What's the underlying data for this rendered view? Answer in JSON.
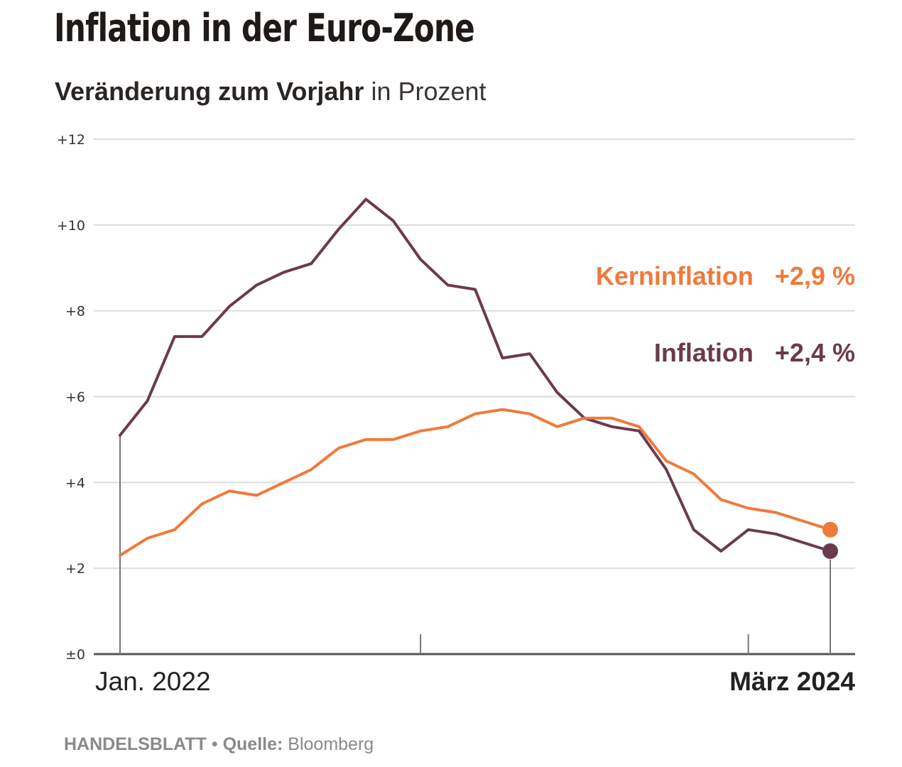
{
  "header": {
    "title": "Inflation in der Euro-Zone",
    "subtitle_bold": "Veränderung zum Vorjahr",
    "subtitle_light": "in Prozent"
  },
  "footer": {
    "brand": "HANDELSBLATT",
    "separator": "•",
    "source_label": "Quelle:",
    "source": "Bloomberg"
  },
  "colors": {
    "inflation": "#6b3a4e",
    "kerninflation": "#f07a3a",
    "grid": "#dcdcdc",
    "axis": "#555555"
  },
  "chart_data": {
    "type": "line",
    "title": "Inflation in der Euro-Zone",
    "subtitle": "Veränderung zum Vorjahr in Prozent",
    "xlabel": "",
    "ylabel": "",
    "ylim": [
      0,
      12
    ],
    "yticks": [
      0,
      2,
      4,
      6,
      8,
      10,
      12
    ],
    "ytick_labels": [
      "±0",
      "+2",
      "+4",
      "+6",
      "+8",
      "+10",
      "+12"
    ],
    "grid": true,
    "x": [
      "Jan 2022",
      "Feb 2022",
      "Mär 2022",
      "Apr 2022",
      "Mai 2022",
      "Jun 2022",
      "Jul 2022",
      "Aug 2022",
      "Sep 2022",
      "Okt 2022",
      "Nov 2022",
      "Dez 2022",
      "Jan 2023",
      "Feb 2023",
      "Mär 2023",
      "Apr 2023",
      "Mai 2023",
      "Jun 2023",
      "Jul 2023",
      "Aug 2023",
      "Sep 2023",
      "Okt 2023",
      "Nov 2023",
      "Dez 2023",
      "Jan 2024",
      "Feb 2024",
      "Mär 2024"
    ],
    "x_labels": [
      {
        "index": 0,
        "text": "Jan. 2022",
        "bold": false
      },
      {
        "index": 26,
        "text": "März 2024",
        "bold": true
      }
    ],
    "x_ticks": [
      0,
      11,
      23,
      26
    ],
    "series": [
      {
        "name": "Inflation",
        "key": "inflation",
        "values": [
          5.1,
          5.9,
          7.4,
          7.4,
          8.1,
          8.6,
          8.9,
          9.1,
          9.9,
          10.6,
          10.1,
          9.2,
          8.6,
          8.5,
          6.9,
          7.0,
          6.1,
          5.5,
          5.3,
          5.2,
          4.3,
          2.9,
          2.4,
          2.9,
          2.8,
          2.6,
          2.4
        ],
        "end_label": "+2,4 %"
      },
      {
        "name": "Kerninflation",
        "key": "kerninflation",
        "values": [
          2.3,
          2.7,
          2.9,
          3.5,
          3.8,
          3.7,
          4.0,
          4.3,
          4.8,
          5.0,
          5.0,
          5.2,
          5.3,
          5.6,
          5.7,
          5.6,
          5.3,
          5.5,
          5.5,
          5.3,
          4.5,
          4.2,
          3.6,
          3.4,
          3.3,
          3.1,
          2.9
        ],
        "end_label": "+2,9 %"
      }
    ],
    "legend": {
      "placement": "right",
      "entries": [
        {
          "name": "Kerninflation",
          "value": "+2,9 %"
        },
        {
          "name": "Inflation",
          "value": "+2,4 %"
        }
      ]
    }
  }
}
